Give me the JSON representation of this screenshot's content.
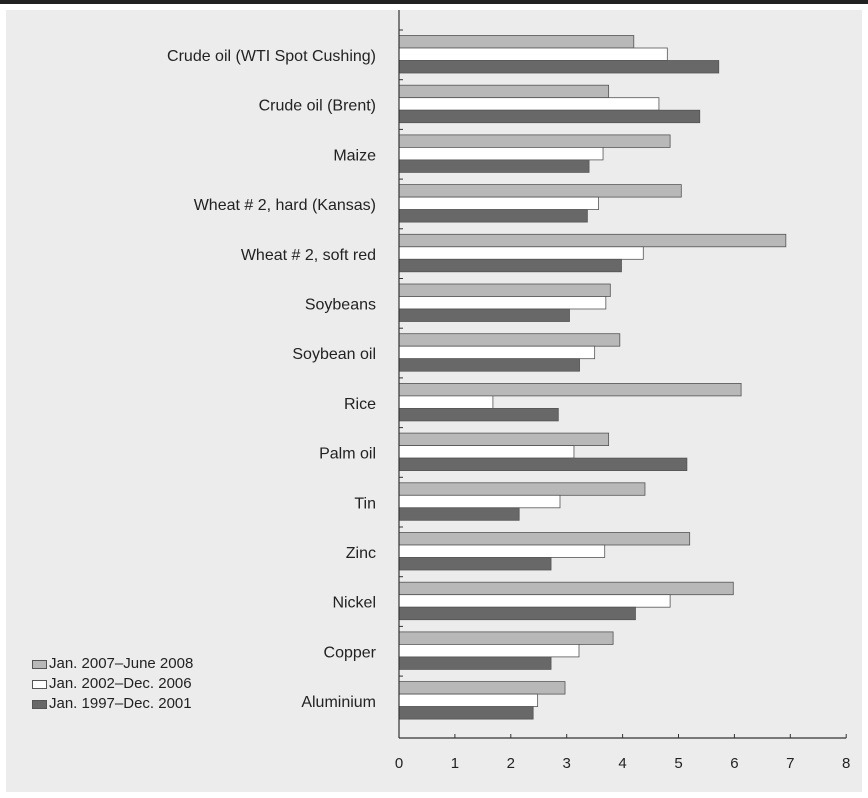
{
  "chart_data": {
    "type": "bar",
    "orientation": "horizontal",
    "categories": [
      "Crude oil (WTI Spot Cushing)",
      "Crude oil (Brent)",
      "Maize",
      "Wheat # 2, hard (Kansas)",
      "Wheat # 2, soft red",
      "Soybeans",
      "Soybean oil",
      "Rice",
      "Palm oil",
      "Tin",
      "Zinc",
      "Nickel",
      "Copper",
      "Aluminium"
    ],
    "series": [
      {
        "name": "Jan. 2007–June 2008",
        "color": "#b8b8b8",
        "values": [
          4.2,
          3.75,
          4.85,
          5.05,
          6.92,
          3.78,
          3.95,
          6.12,
          3.75,
          4.4,
          5.2,
          5.98,
          3.83,
          2.97
        ]
      },
      {
        "name": "Jan. 2002–Dec. 2006",
        "color": "#ffffff",
        "values": [
          4.8,
          4.65,
          3.65,
          3.57,
          4.37,
          3.7,
          3.5,
          1.68,
          3.13,
          2.88,
          3.68,
          4.85,
          3.22,
          2.48
        ]
      },
      {
        "name": "Jan. 1997–Dec. 2001",
        "color": "#686868",
        "values": [
          5.72,
          5.38,
          3.4,
          3.37,
          3.98,
          3.05,
          3.23,
          2.85,
          5.15,
          2.15,
          2.72,
          4.23,
          2.72,
          2.4
        ]
      }
    ],
    "xlim": [
      0,
      8
    ],
    "xticks": [
      "0",
      "1",
      "2",
      "3",
      "4",
      "5",
      "6",
      "7",
      "8"
    ],
    "legend_position": "bottom-left",
    "grid": false
  }
}
